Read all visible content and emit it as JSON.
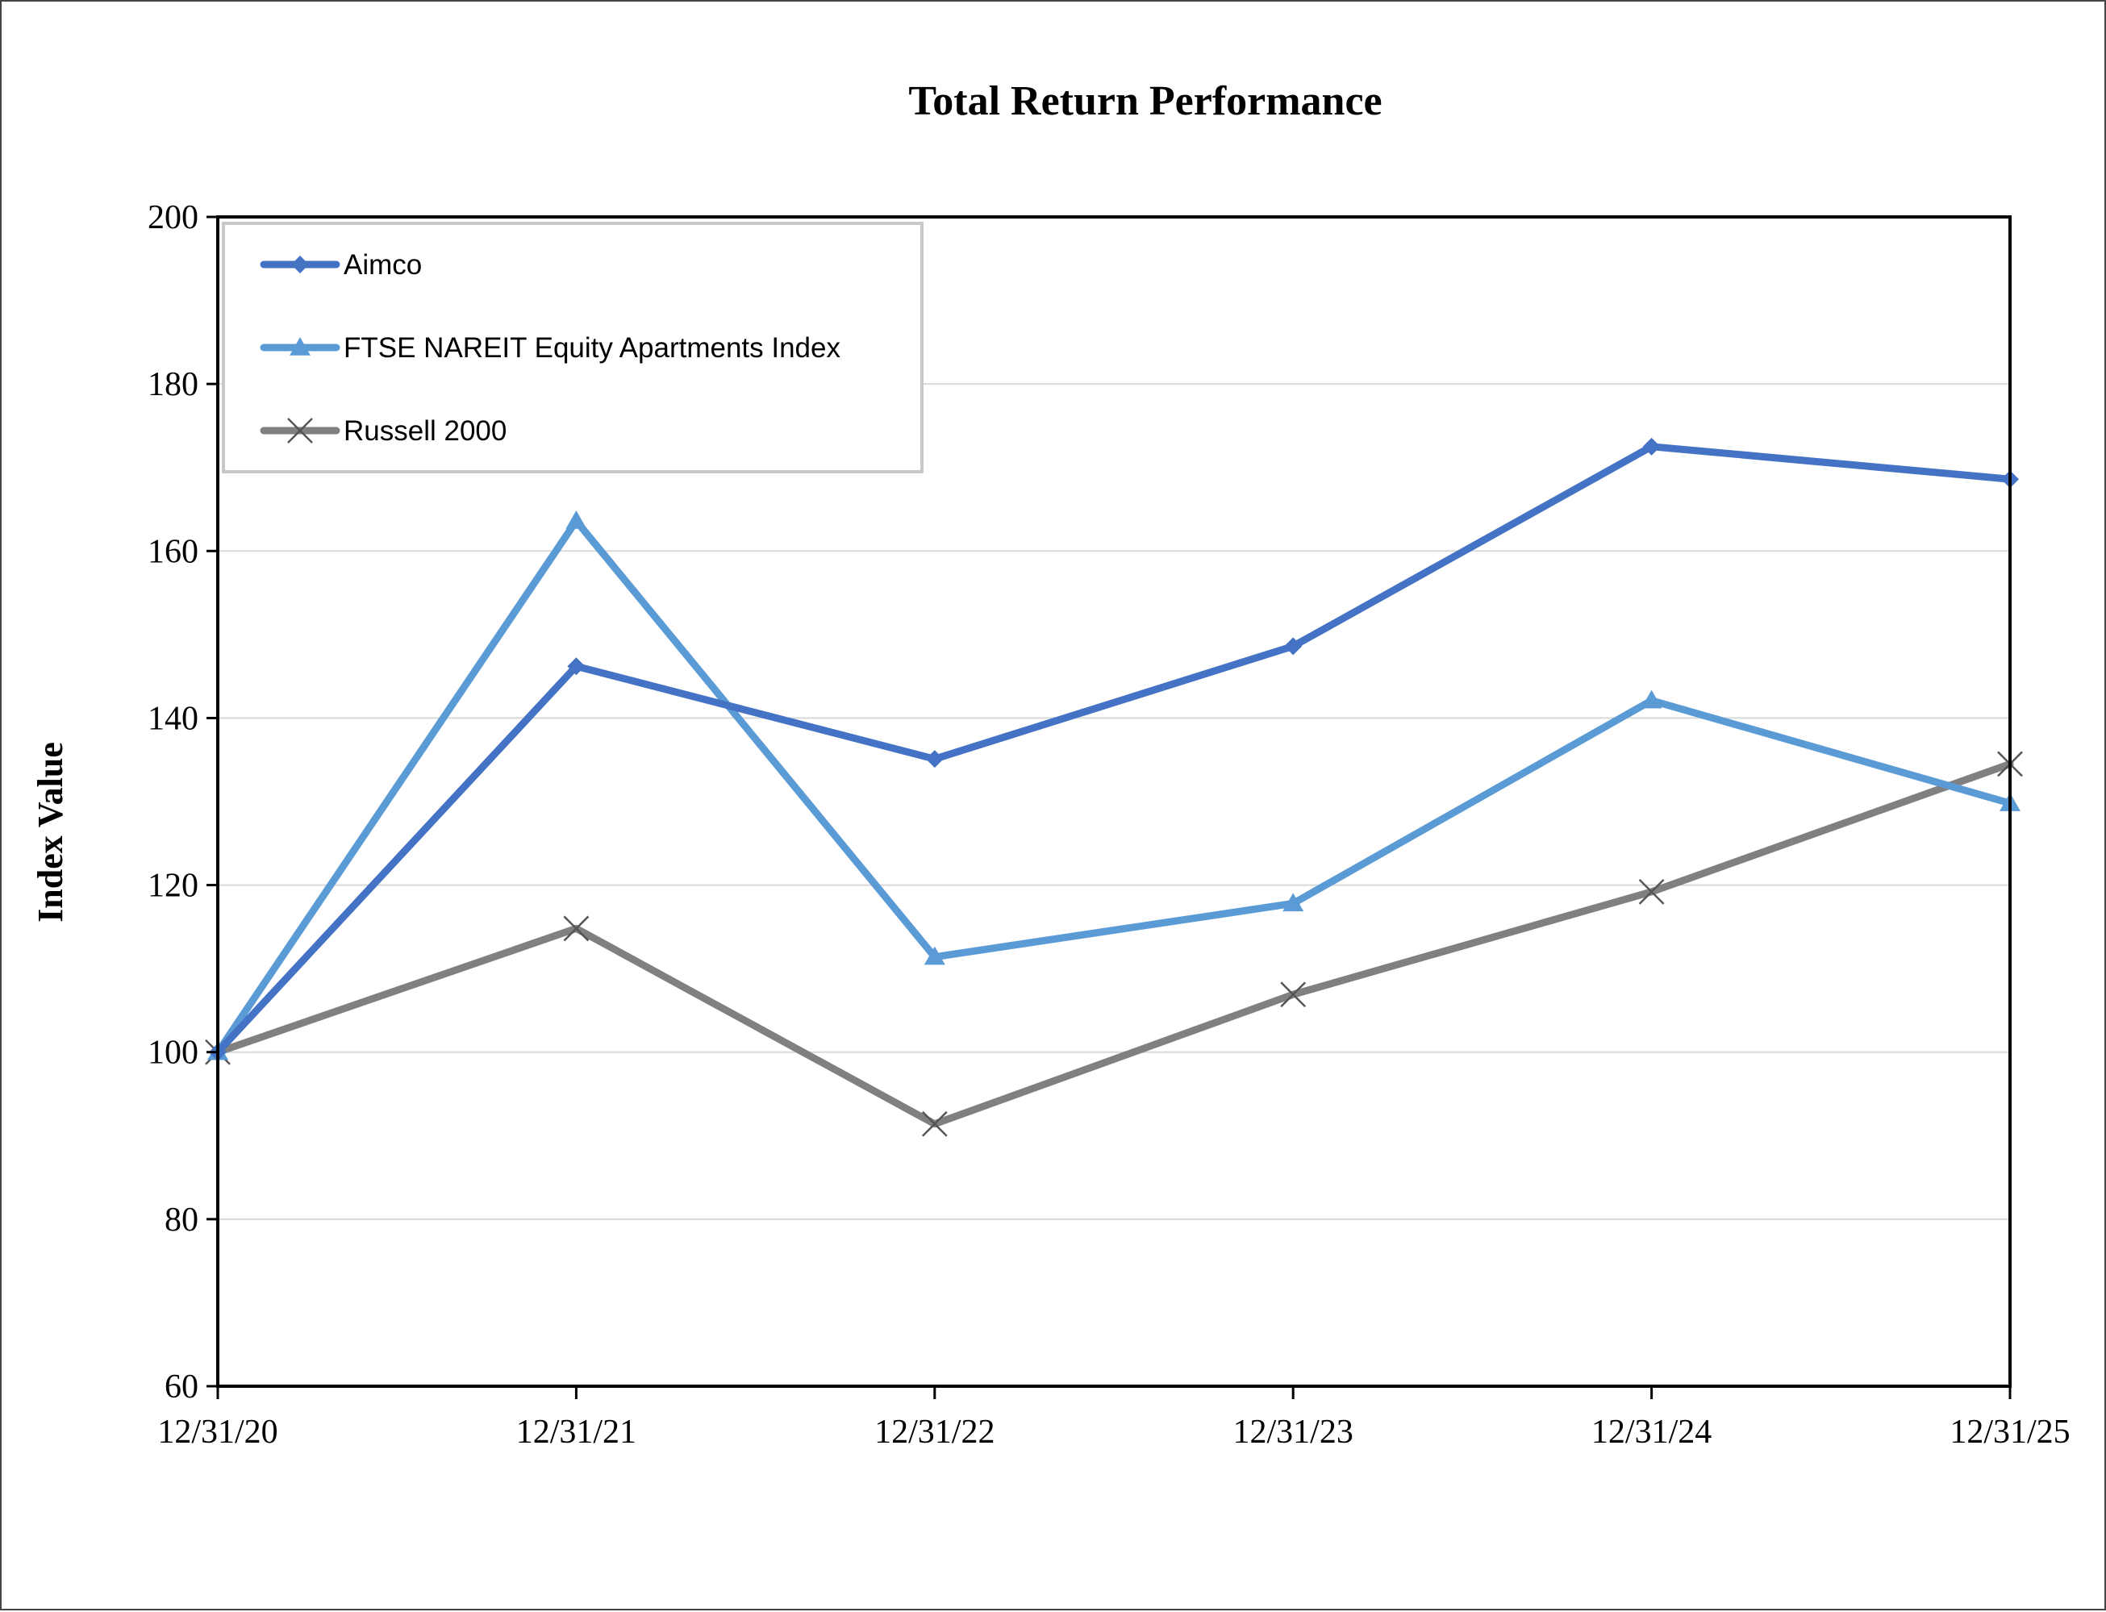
{
  "chart_data": {
    "type": "line",
    "title": "Total Return Performance",
    "xlabel": "",
    "ylabel": "Index Value",
    "categories": [
      "12/31/20",
      "12/31/21",
      "12/31/22",
      "12/31/23",
      "12/31/24",
      "12/31/25"
    ],
    "ylim": [
      60,
      200
    ],
    "yticks": [
      60,
      80,
      100,
      120,
      140,
      160,
      180,
      200
    ],
    "grid": true,
    "legend_position": "top-left",
    "series": [
      {
        "name": "Aimco",
        "values": [
          100,
          146.2,
          135.1,
          148.6,
          172.5,
          168.6
        ],
        "color": "#4472C4",
        "marker": "diamond"
      },
      {
        "name": "FTSE NAREIT Equity Apartments Index",
        "values": [
          100,
          163.6,
          111.4,
          117.8,
          142.1,
          129.8
        ],
        "color": "#5B9BD5",
        "marker": "triangle"
      },
      {
        "name": "Russell 2000",
        "values": [
          100,
          114.8,
          91.4,
          106.9,
          119.2,
          134.5
        ],
        "color": "#808080",
        "marker": "x"
      }
    ]
  }
}
